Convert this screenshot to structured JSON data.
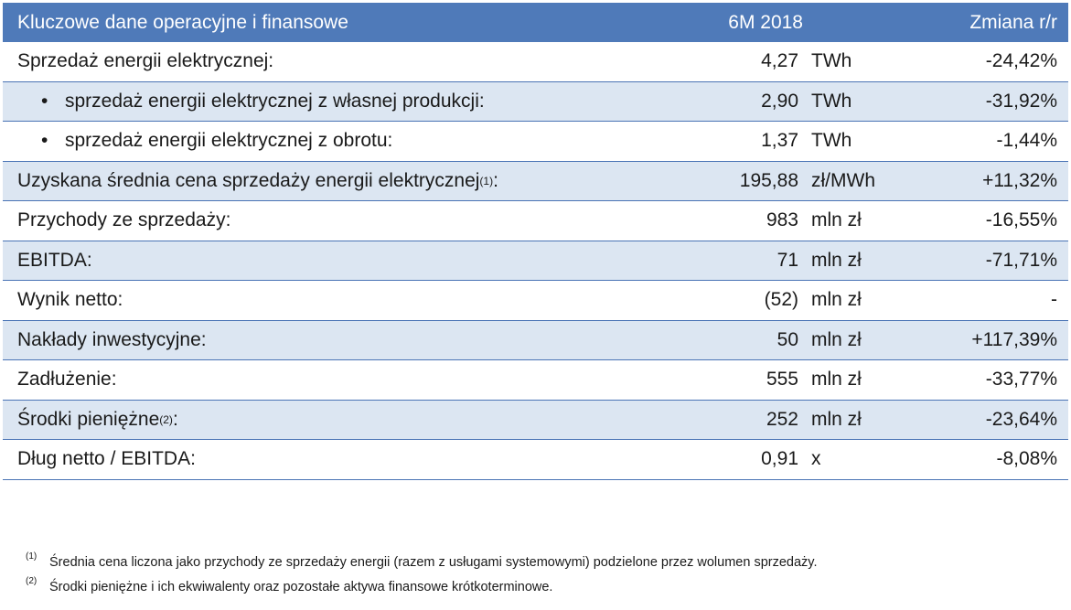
{
  "table": {
    "header": {
      "label": "Kluczowe dane operacyjne i finansowe",
      "period": "6M 2018",
      "change": "Zmiana r/r"
    },
    "rows": [
      {
        "label": "Sprzedaż energii elektrycznej:",
        "sup": "",
        "suffix": "",
        "value": "4,27",
        "unit": "TWh",
        "change": "-24,42%",
        "indent": false,
        "shaded": false
      },
      {
        "label": "sprzedaż energii elektrycznej z własnej produkcji:",
        "sup": "",
        "suffix": "",
        "value": "2,90",
        "unit": "TWh",
        "change": "-31,92%",
        "indent": true,
        "shaded": true
      },
      {
        "label": "sprzedaż energii elektrycznej z obrotu:",
        "sup": "",
        "suffix": "",
        "value": "1,37",
        "unit": "TWh",
        "change": "-1,44%",
        "indent": true,
        "shaded": false
      },
      {
        "label": "Uzyskana średnia cena sprzedaży energii elektrycznej",
        "sup": "(1)",
        "suffix": ":",
        "value": "195,88",
        "unit": "zł/MWh",
        "change": "+11,32%",
        "indent": false,
        "shaded": true
      },
      {
        "label": "Przychody ze sprzedaży:",
        "sup": "",
        "suffix": "",
        "value": "983",
        "unit": "mln zł",
        "change": "-16,55%",
        "indent": false,
        "shaded": false
      },
      {
        "label": "EBITDA:",
        "sup": "",
        "suffix": "",
        "value": "71",
        "unit": "mln zł",
        "change": "-71,71%",
        "indent": false,
        "shaded": true
      },
      {
        "label": "Wynik netto:",
        "sup": "",
        "suffix": "",
        "value": "(52)",
        "unit": "mln zł",
        "change": "-",
        "indent": false,
        "shaded": false
      },
      {
        "label": "Nakłady inwestycyjne:",
        "sup": "",
        "suffix": "",
        "value": "50",
        "unit": "mln zł",
        "change": "+117,39%",
        "indent": false,
        "shaded": true
      },
      {
        "label": "Zadłużenie:",
        "sup": "",
        "suffix": "",
        "value": "555",
        "unit": "mln zł",
        "change": "-33,77%",
        "indent": false,
        "shaded": false
      },
      {
        "label": "Środki pieniężne",
        "sup": "(2)",
        "suffix": ":",
        "value": "252",
        "unit": "mln zł",
        "change": "-23,64%",
        "indent": false,
        "shaded": true
      },
      {
        "label": "Dług netto / EBITDA:",
        "sup": "",
        "suffix": "",
        "value": "0,91",
        "unit": "x",
        "change": "-8,08%",
        "indent": false,
        "shaded": false
      }
    ]
  },
  "footnotes": [
    {
      "mark": "(1)",
      "text": "Średnia cena liczona jako przychody ze sprzedaży energii (razem z usługami systemowymi) podzielone przez wolumen sprzedaży."
    },
    {
      "mark": "(2)",
      "text": "Środki pieniężne i ich ekwiwalenty oraz pozostałe aktywa finansowe krótkoterminowe."
    }
  ],
  "colors": {
    "header_bg": "#4f7ab9",
    "shade_bg": "#dce6f2",
    "rule": "#4a74b5"
  }
}
